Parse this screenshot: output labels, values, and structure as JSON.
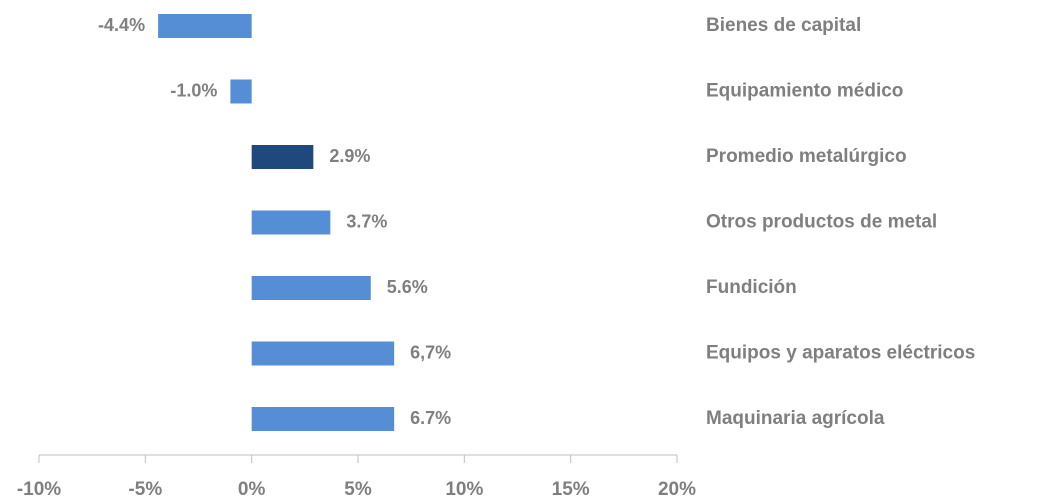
{
  "chart_data": {
    "type": "barh",
    "categories": [
      "Bienes de capital",
      "Equipamiento médico",
      "Promedio metalúrgico",
      "Otros productos de metal",
      "Fundición",
      "Equipos y aparatos eléctricos",
      "Maquinaria agrícola"
    ],
    "values": [
      -4.4,
      -1.0,
      2.9,
      3.7,
      5.6,
      6.7,
      6.7
    ],
    "value_labels": [
      "-4.4%",
      "-1.0%",
      "2.9%",
      "3.7%",
      "5.6%",
      "6,7%",
      "6.7%"
    ],
    "colors": [
      "#558ed5",
      "#558ed5",
      "#1f497d",
      "#558ed5",
      "#558ed5",
      "#558ed5",
      "#558ed5"
    ],
    "xlim": [
      -10,
      20
    ],
    "xticks": [
      {
        "value": -10,
        "label": "-10%"
      },
      {
        "value": -5,
        "label": "-5%"
      },
      {
        "value": 0,
        "label": "0%"
      },
      {
        "value": 5,
        "label": "5%"
      },
      {
        "value": 10,
        "label": "10%"
      },
      {
        "value": 15,
        "label": "15%"
      },
      {
        "value": 20,
        "label": "20%"
      }
    ]
  }
}
